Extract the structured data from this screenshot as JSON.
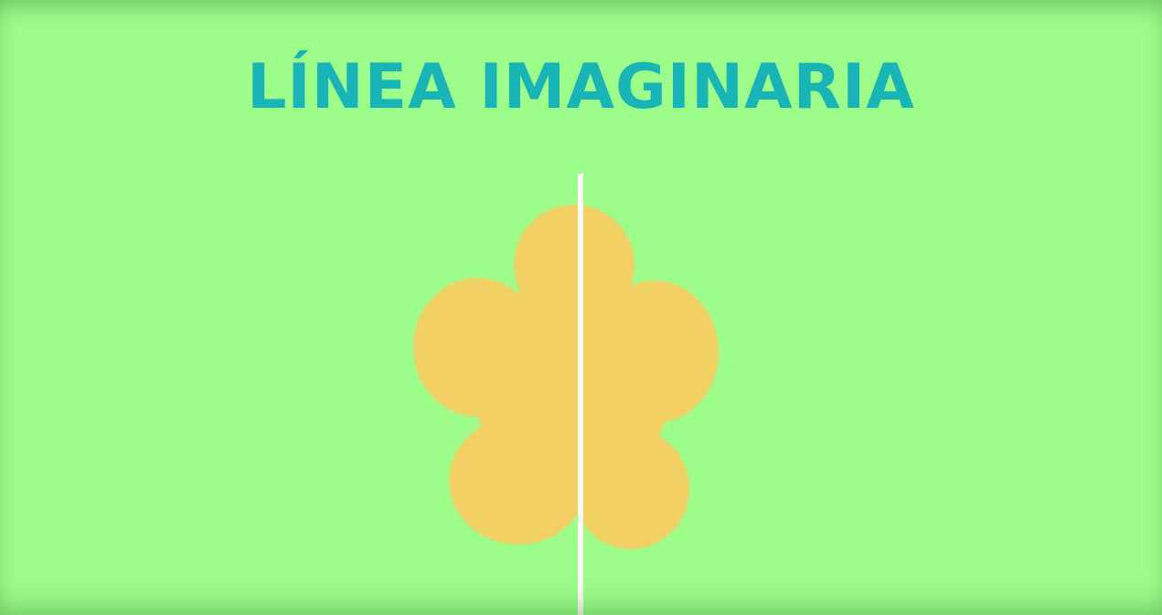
{
  "title": "LÍNEA IMAGINARIA",
  "colors": {
    "background": "#9dfd8b",
    "title": "#18b4b6",
    "flower": "#f2d063",
    "line": "#ffffff"
  },
  "figure": {
    "shape": "flower-icon",
    "axis": "vertical symmetry line"
  }
}
